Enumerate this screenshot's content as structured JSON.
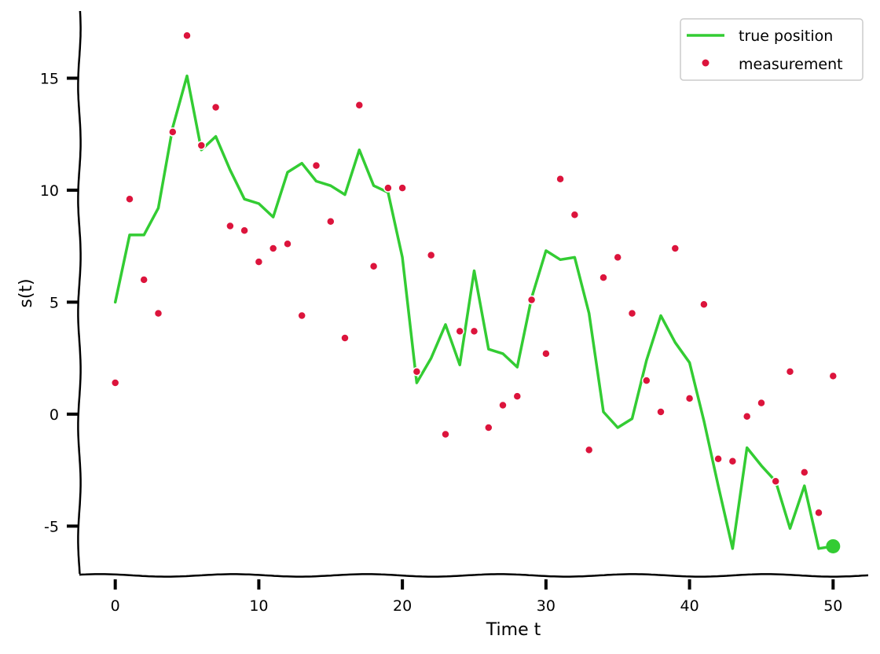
{
  "chart_data": {
    "type": "line",
    "title": "",
    "xlabel": "Time t",
    "ylabel": "s(t)",
    "xlim": [
      -2.5,
      52.5
    ],
    "ylim": [
      -7.2,
      18.0
    ],
    "x_ticks": [
      0,
      10,
      20,
      30,
      40,
      50
    ],
    "y_ticks": [
      -5,
      0,
      5,
      10,
      15
    ],
    "x_tick_labels": [
      "0",
      "10",
      "20",
      "30",
      "40",
      "50"
    ],
    "y_tick_labels": [
      "-5",
      "0",
      "5",
      "10",
      "15"
    ],
    "grid": false,
    "legend_position": "top-right",
    "colors": {
      "true_position": "#33cc33",
      "measurement": "#dc143c"
    },
    "series": [
      {
        "name": "true position",
        "style": "line",
        "x": [
          0,
          1,
          2,
          3,
          4,
          5,
          6,
          7,
          8,
          9,
          10,
          11,
          12,
          13,
          14,
          15,
          16,
          17,
          18,
          19,
          20,
          21,
          22,
          23,
          24,
          25,
          26,
          27,
          28,
          29,
          30,
          31,
          32,
          33,
          34,
          35,
          36,
          37,
          38,
          39,
          40,
          41,
          42,
          43,
          44,
          45,
          46,
          47,
          48,
          49,
          50
        ],
        "values": [
          5.0,
          8.0,
          8.0,
          9.2,
          12.8,
          15.1,
          11.8,
          12.4,
          10.9,
          9.6,
          9.4,
          8.8,
          10.8,
          11.2,
          10.4,
          10.2,
          9.8,
          11.8,
          10.2,
          9.9,
          7.0,
          1.4,
          2.5,
          4.0,
          2.2,
          6.4,
          2.9,
          2.7,
          2.1,
          5.2,
          7.3,
          6.9,
          7.0,
          4.5,
          0.1,
          -0.6,
          -0.2,
          2.4,
          4.4,
          3.2,
          2.3,
          -0.3,
          -3.2,
          -6.0,
          -1.5,
          -2.3,
          -3.0,
          -5.1,
          -3.2,
          -6.0,
          -5.9
        ]
      },
      {
        "name": "measurement",
        "style": "scatter",
        "x": [
          0,
          1,
          2,
          3,
          4,
          5,
          6,
          7,
          8,
          9,
          10,
          11,
          12,
          13,
          14,
          15,
          16,
          17,
          18,
          19,
          20,
          21,
          22,
          23,
          24,
          25,
          26,
          27,
          28,
          29,
          30,
          31,
          32,
          33,
          34,
          35,
          36,
          37,
          38,
          39,
          40,
          41,
          42,
          43,
          44,
          45,
          46,
          47,
          48,
          49,
          50
        ],
        "values": [
          1.4,
          9.6,
          6.0,
          4.5,
          12.6,
          16.9,
          12.0,
          13.7,
          8.4,
          8.2,
          6.8,
          7.4,
          7.6,
          4.4,
          11.1,
          8.6,
          3.4,
          13.8,
          6.6,
          10.1,
          10.1,
          1.9,
          7.1,
          -0.9,
          3.7,
          3.7,
          -0.6,
          0.4,
          0.8,
          5.1,
          2.7,
          10.5,
          8.9,
          -1.6,
          6.1,
          7.0,
          4.5,
          1.5,
          0.1,
          7.4,
          0.7,
          4.9,
          -2.0,
          -2.1,
          -0.1,
          0.5,
          -3.0,
          1.9,
          -2.6,
          -4.4,
          1.7
        ]
      }
    ],
    "highlight_point": {
      "x": 50,
      "value": -5.9
    }
  }
}
